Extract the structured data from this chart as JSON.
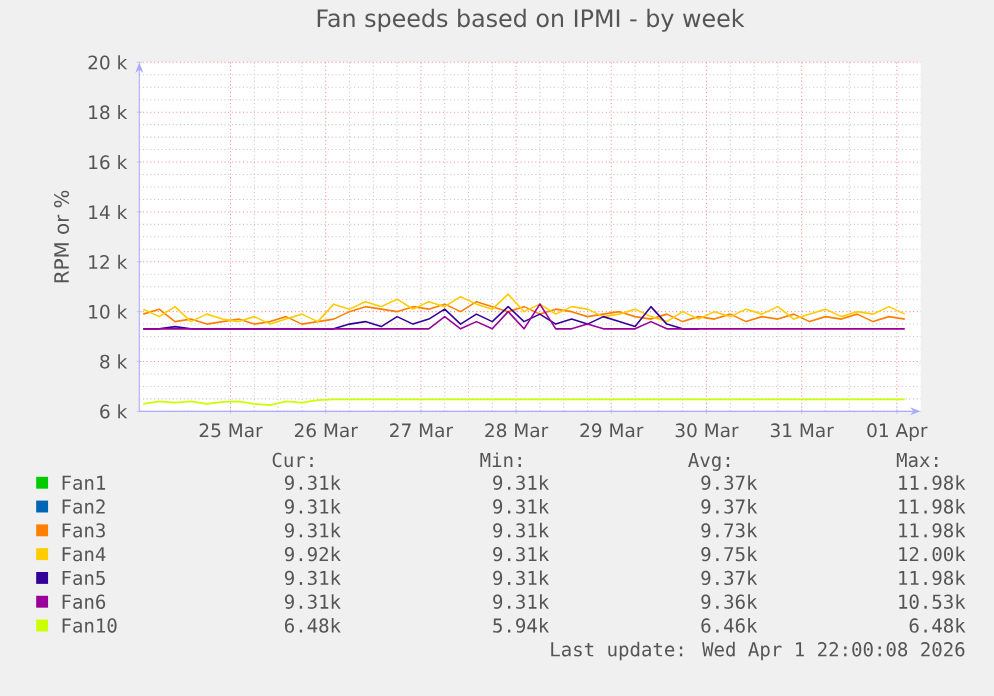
{
  "chart_data": {
    "type": "line",
    "title": "Fan speeds based on IPMI - by week",
    "ylabel": "RPM or %",
    "x": [
      "2026-03-24T02:00",
      "2026-03-24T06:00",
      "2026-03-24T10:00",
      "2026-03-24T14:00",
      "2026-03-24T18:00",
      "2026-03-24T22:00",
      "2026-03-25T02:00",
      "2026-03-25T06:00",
      "2026-03-25T10:00",
      "2026-03-25T14:00",
      "2026-03-25T18:00",
      "2026-03-25T22:00",
      "2026-03-26T02:00",
      "2026-03-26T06:00",
      "2026-03-26T10:00",
      "2026-03-26T14:00",
      "2026-03-26T18:00",
      "2026-03-26T22:00",
      "2026-03-27T02:00",
      "2026-03-27T06:00",
      "2026-03-27T10:00",
      "2026-03-27T14:00",
      "2026-03-27T18:00",
      "2026-03-27T22:00",
      "2026-03-28T02:00",
      "2026-03-28T06:00",
      "2026-03-28T10:00",
      "2026-03-28T14:00",
      "2026-03-28T18:00",
      "2026-03-28T22:00",
      "2026-03-29T02:00",
      "2026-03-29T06:00",
      "2026-03-29T10:00",
      "2026-03-29T14:00",
      "2026-03-29T18:00",
      "2026-03-29T22:00",
      "2026-03-30T02:00",
      "2026-03-30T06:00",
      "2026-03-30T10:00",
      "2026-03-30T14:00",
      "2026-03-30T18:00",
      "2026-03-30T22:00",
      "2026-03-31T02:00",
      "2026-03-31T06:00",
      "2026-03-31T10:00",
      "2026-03-31T14:00",
      "2026-03-31T18:00",
      "2026-03-31T22:00",
      "2026-04-01T02:00"
    ],
    "series": [
      {
        "name": "Fan1",
        "color": "#00cc00",
        "values": [
          null,
          null,
          null,
          null,
          null,
          null,
          null,
          null,
          null,
          null,
          null,
          null,
          null,
          null,
          null,
          null,
          null,
          null,
          null,
          null,
          null,
          null,
          null,
          null,
          null,
          null,
          null,
          null,
          null,
          null,
          null,
          null,
          null,
          null,
          null,
          null,
          null,
          null,
          null,
          null,
          null,
          null,
          null,
          null,
          null,
          null,
          null,
          null,
          null
        ]
      },
      {
        "name": "Fan2",
        "color": "#0066b3",
        "values": [
          null,
          null,
          null,
          null,
          null,
          null,
          null,
          null,
          null,
          null,
          null,
          null,
          null,
          null,
          null,
          null,
          null,
          null,
          null,
          null,
          null,
          null,
          null,
          null,
          null,
          null,
          null,
          null,
          null,
          null,
          null,
          null,
          null,
          null,
          null,
          null,
          null,
          null,
          null,
          null,
          null,
          null,
          null,
          null,
          null,
          null,
          null,
          null,
          null
        ]
      },
      {
        "name": "Fan3",
        "color": "#ff8000",
        "values": [
          9900,
          10100,
          9600,
          9700,
          9500,
          9600,
          9700,
          9500,
          9600,
          9800,
          9500,
          9600,
          9700,
          10000,
          10200,
          10100,
          10000,
          10200,
          10100,
          10300,
          10000,
          10400,
          10200,
          10000,
          10200,
          9900,
          10100,
          10000,
          9800,
          9900,
          10000,
          9800,
          9700,
          9900,
          9600,
          9800,
          9700,
          9900,
          9600,
          9800,
          9700,
          9900,
          9600,
          9800,
          9700,
          9900,
          9600,
          9800,
          9700
        ]
      },
      {
        "name": "Fan4",
        "color": "#ffcc00",
        "values": [
          10100,
          9800,
          10200,
          9600,
          9900,
          9700,
          9600,
          9800,
          9500,
          9700,
          9900,
          9600,
          10300,
          10100,
          10400,
          10200,
          10500,
          10100,
          10400,
          10200,
          10600,
          10300,
          10100,
          10700,
          10000,
          10300,
          9900,
          10200,
          10100,
          9800,
          9900,
          10100,
          9800,
          9600,
          10000,
          9700,
          10000,
          9800,
          10100,
          9900,
          10200,
          9700,
          9900,
          10100,
          9800,
          10000,
          9900,
          10200,
          9900
        ]
      },
      {
        "name": "Fan5",
        "color": "#330099",
        "values": [
          9310,
          9310,
          9400,
          9310,
          9310,
          9310,
          9310,
          9310,
          9310,
          9310,
          9310,
          9310,
          9310,
          9500,
          9600,
          9400,
          9800,
          9500,
          9700,
          10100,
          9500,
          9900,
          9600,
          10200,
          9600,
          9900,
          9500,
          9700,
          9500,
          9800,
          9600,
          9400,
          10200,
          9500,
          9310,
          9310,
          null,
          null,
          null,
          null,
          null,
          null,
          null,
          null,
          null,
          null,
          null,
          null,
          null
        ]
      },
      {
        "name": "Fan6",
        "color": "#990099",
        "values": [
          9310,
          9310,
          9310,
          9310,
          9310,
          9310,
          9310,
          9310,
          9310,
          9310,
          9310,
          9310,
          9310,
          9310,
          9310,
          9310,
          9310,
          9310,
          9310,
          9800,
          9310,
          9600,
          9310,
          10000,
          9310,
          10300,
          9310,
          9310,
          9500,
          9310,
          9310,
          9310,
          9600,
          9310,
          9310,
          9310,
          9310,
          9310,
          9310,
          9310,
          9310,
          9310,
          9310,
          9310,
          9310,
          9310,
          9310,
          9310,
          9310
        ]
      },
      {
        "name": "Fan10",
        "color": "#ccff00",
        "values": [
          6300,
          6400,
          6350,
          6400,
          6300,
          6380,
          6400,
          6300,
          6250,
          6400,
          6350,
          6450,
          6480,
          6480,
          6480,
          6480,
          6480,
          6480,
          6480,
          6480,
          6480,
          6480,
          6480,
          6480,
          6480,
          6480,
          6480,
          6480,
          6480,
          6480,
          6480,
          6480,
          6480,
          6480,
          6480,
          6480,
          6480,
          6480,
          6480,
          6480,
          6480,
          6480,
          6480,
          6480,
          6480,
          6480,
          6480,
          6480,
          6480
        ]
      }
    ],
    "xlim": [
      "2026-03-24T01:00",
      "2026-04-01T06:00"
    ],
    "xticks": [
      {
        "value": "2026-03-25",
        "label": "25 Mar"
      },
      {
        "value": "2026-03-26",
        "label": "26 Mar"
      },
      {
        "value": "2026-03-27",
        "label": "27 Mar"
      },
      {
        "value": "2026-03-28",
        "label": "28 Mar"
      },
      {
        "value": "2026-03-29",
        "label": "29 Mar"
      },
      {
        "value": "2026-03-30",
        "label": "30 Mar"
      },
      {
        "value": "2026-03-31",
        "label": "31 Mar"
      },
      {
        "value": "2026-04-01",
        "label": "01 Apr"
      }
    ],
    "ylim": [
      6000,
      20000
    ],
    "yticks": [
      {
        "value": 6000,
        "label": "6 k"
      },
      {
        "value": 8000,
        "label": "8 k"
      },
      {
        "value": 10000,
        "label": "10 k"
      },
      {
        "value": 12000,
        "label": "12 k"
      },
      {
        "value": 14000,
        "label": "14 k"
      },
      {
        "value": 16000,
        "label": "16 k"
      },
      {
        "value": 18000,
        "label": "18 k"
      },
      {
        "value": 20000,
        "label": "20 k"
      }
    ],
    "grid": true,
    "legend": "bottom",
    "annotations": [
      "Cur:",
      "Min:",
      "Avg:",
      "Max:",
      "9.31k",
      "9.31k",
      "9.37k",
      "11.98k",
      "9.31k",
      "9.31k",
      "9.37k",
      "11.98k",
      "9.31k",
      "9.31k",
      "9.73k",
      "11.98k",
      "9.92k",
      "9.31k",
      "9.75k",
      "12.00k",
      "9.31k",
      "9.31k",
      "9.37k",
      "11.98k",
      "9.31k",
      "9.31k",
      "9.36k",
      "10.53k",
      "6.48k",
      "5.94k",
      "6.46k",
      "6.48k",
      "Last update: Wed Apr 1 22:00:08 2026"
    ]
  }
}
